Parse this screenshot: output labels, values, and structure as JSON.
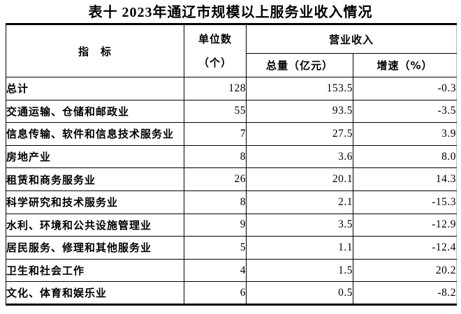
{
  "title": "表十  2023年通辽市规模以上服务业收入情况",
  "header": {
    "indicator": "指　标",
    "units_line1": "单位数",
    "units_line2": "（个）",
    "revenue_group": "营业收入",
    "revenue_total": "总量（亿元）",
    "revenue_growth": "增速（%）"
  },
  "chart_data": {
    "type": "table",
    "title": "表十 2023年通辽市规模以上服务业收入情况",
    "columns": [
      "指标",
      "单位数（个）",
      "营业收入 总量（亿元）",
      "营业收入 增速（%）"
    ],
    "rows": [
      [
        "总计",
        "128",
        "153.5",
        "-0.3"
      ],
      [
        "交通运输、仓储和邮政业",
        "55",
        "93.5",
        "-3.5"
      ],
      [
        "信息传输、软件和信息技术服务业",
        "7",
        "27.5",
        "3.9"
      ],
      [
        "房地产业",
        "8",
        "3.6",
        "8.0"
      ],
      [
        "租赁和商务服务业",
        "26",
        "20.1",
        "14.3"
      ],
      [
        "科学研究和技术服务业",
        "8",
        "2.1",
        "-15.3"
      ],
      [
        "水利、环境和公共设施管理业",
        "9",
        "3.5",
        "-12.9"
      ],
      [
        "居民服务、修理和其他服务业",
        "5",
        "1.1",
        "-12.4"
      ],
      [
        "卫生和社会工作",
        "4",
        "1.5",
        "20.2"
      ],
      [
        "文化、体育和娱乐业",
        "6",
        "0.5",
        "-8.2"
      ]
    ]
  },
  "colors": {
    "text": "#000000",
    "border": "#000000",
    "faint_right_border": "#b9b9b9",
    "background": "#ffffff"
  }
}
